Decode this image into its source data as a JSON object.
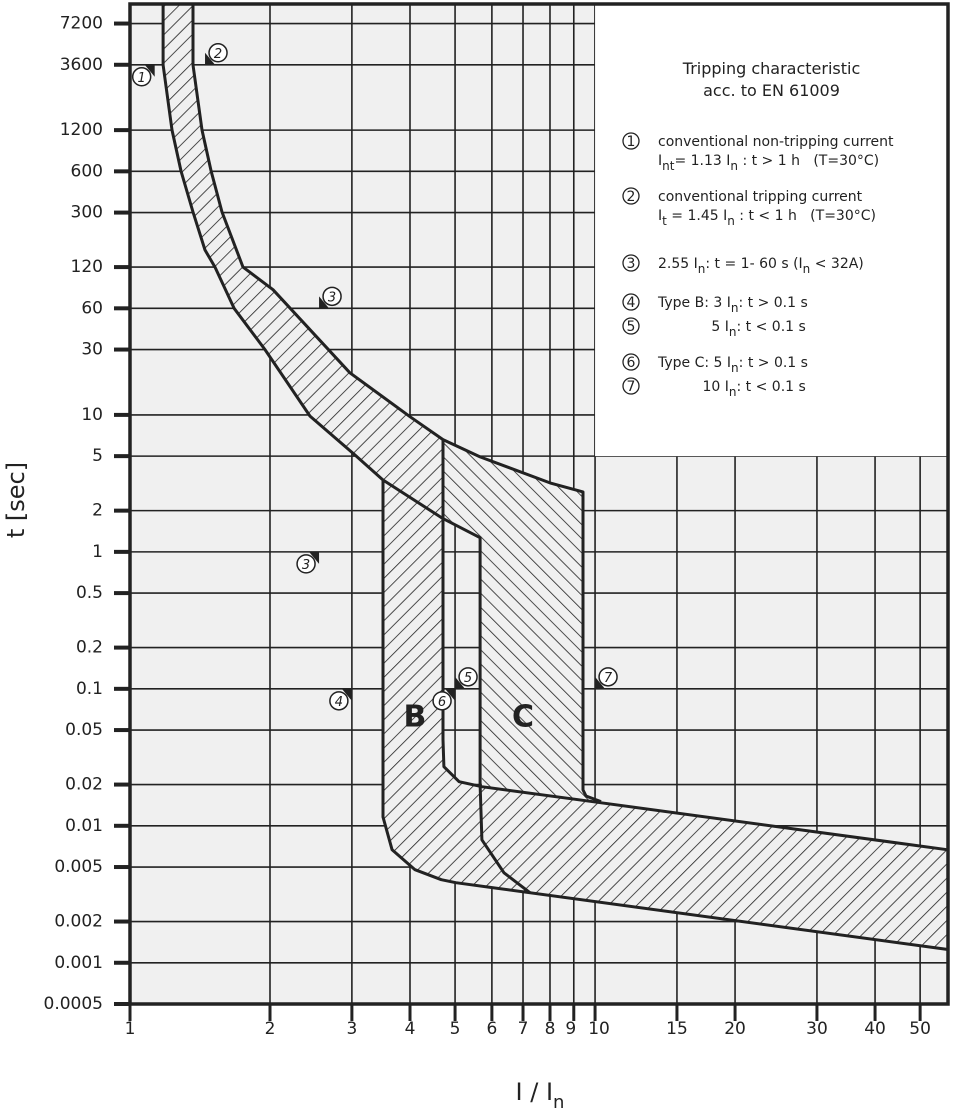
{
  "chart_data": {
    "type": "area",
    "title": "",
    "xscale": "log",
    "yscale": "log",
    "xlim": [
      1,
      57.4
    ],
    "ylim": [
      0.0005,
      10000
    ],
    "grid": true,
    "xlabel": {
      "text": "I / I",
      "subscript": "n"
    },
    "ylabel": "t [sec]",
    "xticks": [
      1,
      2,
      3,
      4,
      5,
      6,
      7,
      8,
      9,
      10,
      15,
      20,
      30,
      40,
      50
    ],
    "xtick_labels": [
      "1",
      "2",
      "3",
      "4",
      "5",
      "6",
      "7",
      "8",
      "9",
      "10",
      "15",
      "20",
      "30",
      "40",
      "50"
    ],
    "yticks": [
      7200,
      3600,
      1200,
      600,
      300,
      120,
      60,
      30,
      10,
      5,
      2,
      1,
      0.5,
      0.2,
      0.1,
      0.05,
      0.02,
      0.01,
      0.005,
      0.002,
      0.001,
      0.0005
    ],
    "ytick_labels": [
      "7200",
      "3600",
      "1200",
      "600",
      "300",
      "120",
      "60",
      "30",
      "10",
      "5",
      "2",
      "1",
      "0.5",
      "0.2",
      "0.1",
      "0.05",
      "0.02",
      "0.01",
      "0.005",
      "0.002",
      "0.001",
      "0.0005"
    ],
    "colors": {
      "line": "#222222",
      "background": "#f0f0f0",
      "legend_background": "#ffffff"
    },
    "regions": [
      {
        "id": "thermal-band",
        "hatch": "forward",
        "points": [
          [
            1.178,
            10000
          ],
          [
            1.178,
            3590
          ],
          [
            1.231,
            1203
          ],
          [
            1.287,
            604
          ],
          [
            1.366,
            303
          ],
          [
            1.45,
            160
          ],
          [
            1.523,
            120
          ],
          [
            1.674,
            60
          ],
          [
            1.951,
            30
          ],
          [
            2.438,
            9.8
          ],
          [
            3.047,
            5.1
          ],
          [
            3.5,
            3.35
          ],
          [
            4.71,
            1.75
          ],
          [
            4.71,
            6.6
          ],
          [
            4.0,
            9.7
          ],
          [
            2.97,
            20.3
          ],
          [
            2.03,
            82
          ],
          [
            1.75,
            120
          ],
          [
            1.577,
            303
          ],
          [
            1.494,
            604
          ],
          [
            1.428,
            1203
          ],
          [
            1.366,
            3590
          ],
          [
            1.366,
            10000
          ]
        ]
      },
      {
        "id": "type-b-band",
        "hatch": "forward",
        "points": [
          [
            3.5,
            3.3
          ],
          [
            3.5,
            0.0116
          ],
          [
            3.66,
            0.00668
          ],
          [
            4.1,
            0.00478
          ],
          [
            4.67,
            0.00404
          ],
          [
            5.02,
            0.00384
          ],
          [
            57.4,
            0.00125
          ],
          [
            57.4,
            0.00668
          ],
          [
            9.9,
            0.015
          ],
          [
            5.71,
            0.0193
          ],
          [
            5.1,
            0.021
          ],
          [
            4.73,
            0.027
          ],
          [
            4.71,
            0.0425
          ],
          [
            4.71,
            6.6
          ]
        ]
      },
      {
        "id": "type-c-band",
        "hatch": "backward",
        "points": [
          [
            4.71,
            6.6
          ],
          [
            5.66,
            4.94
          ],
          [
            8.0,
            3.19
          ],
          [
            9.42,
            2.74
          ],
          [
            9.42,
            0.0183
          ],
          [
            9.9,
            0.015
          ],
          [
            5.71,
            0.0193
          ],
          [
            5.66,
            1.27
          ],
          [
            4.71,
            1.75
          ]
        ]
      }
    ],
    "lines": [
      {
        "id": "thermal-lower-limit",
        "points": [
          [
            1.178,
            10000
          ],
          [
            1.178,
            3590
          ],
          [
            1.231,
            1203
          ],
          [
            1.287,
            604
          ],
          [
            1.366,
            303
          ],
          [
            1.45,
            160
          ],
          [
            1.523,
            120
          ],
          [
            1.674,
            60
          ],
          [
            1.951,
            30
          ],
          [
            2.438,
            9.8
          ],
          [
            3.047,
            5.1
          ],
          [
            3.5,
            3.35
          ],
          [
            4.71,
            1.75
          ],
          [
            5.66,
            1.27
          ],
          [
            5.66,
            0.02
          ],
          [
            5.71,
            0.0079
          ],
          [
            6.37,
            0.00454
          ],
          [
            7.25,
            0.00324
          ]
        ]
      },
      {
        "id": "thermal-upper-limit-c-top",
        "points": [
          [
            1.366,
            10000
          ],
          [
            1.366,
            3590
          ],
          [
            1.428,
            1203
          ],
          [
            1.494,
            604
          ],
          [
            1.577,
            303
          ],
          [
            1.75,
            120
          ],
          [
            2.03,
            82
          ],
          [
            2.97,
            20.3
          ],
          [
            4.0,
            9.7
          ],
          [
            4.71,
            6.6
          ],
          [
            5.66,
            4.94
          ],
          [
            8.0,
            3.19
          ],
          [
            9.42,
            2.74
          ],
          [
            9.42,
            0.0183
          ],
          [
            9.56,
            0.0165
          ],
          [
            10.3,
            0.015
          ]
        ]
      },
      {
        "id": "type-b-right-and-upper-limit",
        "points": [
          [
            4.71,
            6.6
          ],
          [
            4.71,
            0.0425
          ],
          [
            4.73,
            0.027
          ],
          [
            5.1,
            0.021
          ],
          [
            5.71,
            0.0193
          ],
          [
            9.9,
            0.015
          ],
          [
            57.4,
            0.00668
          ]
        ]
      },
      {
        "id": "type-b-left-and-lower-limit",
        "points": [
          [
            3.5,
            3.3
          ],
          [
            3.5,
            0.0116
          ],
          [
            3.66,
            0.00668
          ],
          [
            4.1,
            0.00478
          ],
          [
            4.67,
            0.00404
          ],
          [
            5.02,
            0.00384
          ],
          [
            57.4,
            0.00125
          ]
        ]
      }
    ],
    "annotations": [
      {
        "label": "1",
        "I": 1.13,
        "t": 3600,
        "side": "below-left"
      },
      {
        "label": "2",
        "I": 1.45,
        "t": 3600,
        "side": "above-right"
      },
      {
        "label": "3",
        "I": 2.55,
        "t": 60,
        "side": "above-right"
      },
      {
        "label": "3",
        "I": 2.55,
        "t": 1,
        "side": "below-left"
      },
      {
        "label": "4",
        "I": 3,
        "t": 0.1,
        "side": "below-left"
      },
      {
        "label": "5",
        "I": 5,
        "t": 0.1,
        "side": "above-right"
      },
      {
        "label": "6",
        "I": 5,
        "t": 0.1,
        "side": "below-left"
      },
      {
        "label": "7",
        "I": 10,
        "t": 0.1,
        "side": "above-right"
      }
    ],
    "band_labels": [
      {
        "text": "B",
        "I": 4.1,
        "t": 0.065
      },
      {
        "text": "C",
        "I": 7.0,
        "t": 0.065
      }
    ]
  },
  "legend": {
    "title_lines": [
      "Tripping characteristic",
      "acc. to EN 61009"
    ],
    "items": [
      {
        "num": "1",
        "lines": [
          [
            [
              "conventional non-tripping current",
              0
            ]
          ],
          [
            [
              "I",
              0
            ],
            [
              "nt",
              1
            ],
            [
              "= 1.13 I",
              0
            ],
            [
              "n",
              1
            ],
            [
              " : t > 1 h   (T=30°C)",
              0
            ]
          ]
        ]
      },
      {
        "num": "2",
        "lines": [
          [
            [
              "conventional tripping current",
              0
            ]
          ],
          [
            [
              "I",
              0
            ],
            [
              "t",
              1
            ],
            [
              " = 1.45 I",
              0
            ],
            [
              "n",
              1
            ],
            [
              " : t < 1 h   (T=30°C)",
              0
            ]
          ]
        ]
      },
      {
        "num": "3",
        "lines": [
          [
            [
              "2.55 I",
              0
            ],
            [
              "n",
              1
            ],
            [
              ": t = 1- 60 s (I",
              0
            ],
            [
              "n",
              1
            ],
            [
              " < 32A)",
              0
            ]
          ]
        ]
      },
      {
        "num": "4",
        "lines": [
          [
            [
              "Type B: 3 I",
              0
            ],
            [
              "n",
              1
            ],
            [
              ": t > 0.1 s",
              0
            ]
          ]
        ]
      },
      {
        "num": "5",
        "lines": [
          [
            [
              "            5 I",
              0
            ],
            [
              "n",
              1
            ],
            [
              ": t < 0.1 s",
              0
            ]
          ]
        ]
      },
      {
        "num": "6",
        "lines": [
          [
            [
              "Type C: 5 I",
              0
            ],
            [
              "n",
              1
            ],
            [
              ": t > 0.1 s",
              0
            ]
          ]
        ]
      },
      {
        "num": "7",
        "lines": [
          [
            [
              "          10 I",
              0
            ],
            [
              "n",
              1
            ],
            [
              ": t < 0.1 s",
              0
            ]
          ]
        ]
      }
    ]
  }
}
